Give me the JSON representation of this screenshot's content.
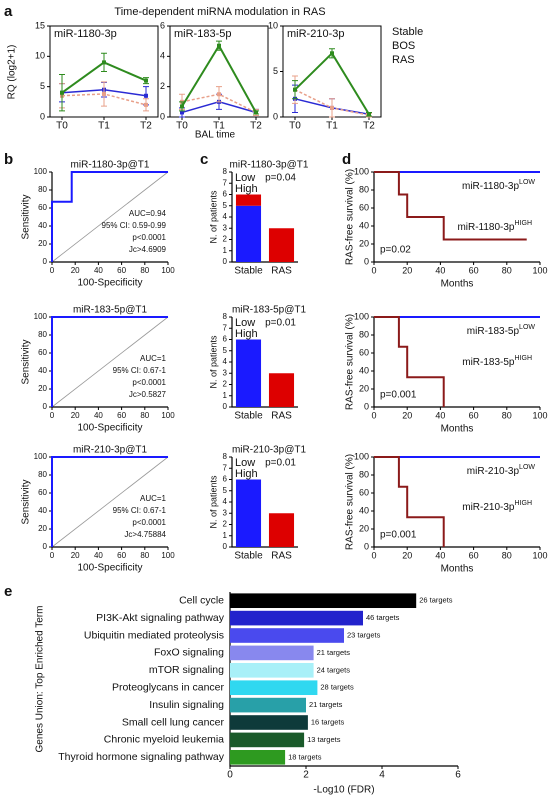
{
  "panel_a": {
    "letter": "a",
    "title": "Time-dependent miRNA modulation in RAS",
    "ylabel": "RQ (log2+1)",
    "xlabel": "BAL time"
  },
  "panel_b": {
    "letter": "b"
  },
  "panel_c": {
    "letter": "c"
  },
  "panel_d": {
    "letter": "d"
  },
  "panel_e": {
    "letter": "e"
  },
  "chart_data": [
    {
      "type": "line",
      "title": "miR-1180-3p",
      "categories": [
        "T0",
        "T1",
        "T2"
      ],
      "ylim": [
        0,
        15
      ],
      "yticks": [
        0,
        5,
        10,
        15
      ],
      "series": [
        {
          "name": "Stable",
          "color": "#2a2ad4",
          "values": [
            4,
            4.5,
            3.5
          ],
          "errors": [
            1.5,
            1.2,
            1.5
          ]
        },
        {
          "name": "BOS",
          "color": "#e8a08a",
          "values": [
            3.5,
            3.8,
            2
          ],
          "errors": [
            2,
            2,
            1
          ]
        },
        {
          "name": "RAS",
          "color": "#2e8b1e",
          "values": [
            4,
            9,
            6
          ],
          "errors": [
            3,
            1.5,
            0.5
          ]
        }
      ]
    },
    {
      "type": "line",
      "title": "miR-183-5p",
      "categories": [
        "T0",
        "T1",
        "T2"
      ],
      "ylim": [
        0,
        6
      ],
      "yticks": [
        0,
        2,
        4,
        6
      ],
      "series": [
        {
          "color": "#2a2ad4",
          "values": [
            0.3,
            1,
            0.3
          ],
          "errors": [
            0.3,
            0.5,
            0.2
          ]
        },
        {
          "color": "#e8a08a",
          "values": [
            1,
            1.5,
            0.3
          ],
          "errors": [
            0.5,
            0.5,
            0.2
          ]
        },
        {
          "color": "#2e8b1e",
          "values": [
            0.7,
            4.7,
            0.3
          ],
          "errors": [
            0.3,
            0.3,
            0.1
          ]
        }
      ]
    },
    {
      "type": "line",
      "title": "miR-210-3p",
      "categories": [
        "T0",
        "T1",
        "T2"
      ],
      "ylim": [
        0,
        10
      ],
      "yticks": [
        0,
        5,
        10
      ],
      "series": [
        {
          "color": "#2a2ad4",
          "values": [
            2,
            1,
            0.3
          ],
          "errors": [
            1.5,
            1,
            0.2
          ]
        },
        {
          "color": "#e8a08a",
          "values": [
            3,
            1,
            0.2
          ],
          "errors": [
            1.5,
            1,
            0.2
          ]
        },
        {
          "color": "#2e8b1e",
          "values": [
            3,
            7,
            0.3
          ],
          "errors": [
            1,
            0.5,
            0.2
          ]
        }
      ]
    },
    {
      "type": "roc",
      "title": "miR-1180-3p@T1",
      "xlabel": "100-Specificity",
      "ylabel": "Sensitivity",
      "xlim": [
        0,
        100
      ],
      "ylim": [
        0,
        100
      ],
      "xticks": [
        0,
        20,
        40,
        60,
        80,
        100
      ],
      "yticks": [
        0,
        20,
        40,
        60,
        80,
        100
      ],
      "series": [
        {
          "color": "#1a1aff",
          "x": [
            0,
            0,
            17,
            17,
            100
          ],
          "values": [
            0,
            67,
            67,
            100,
            100
          ]
        }
      ],
      "annotations": [
        "AUC=0.94",
        "95% CI: 0.59-0.99",
        "p<0.0001",
        "Jc>4.6909"
      ]
    },
    {
      "type": "roc",
      "title": "miR-183-5p@T1",
      "xlabel": "100-Specificity",
      "ylabel": "Sensitivity",
      "xlim": [
        0,
        100
      ],
      "ylim": [
        0,
        100
      ],
      "xticks": [
        0,
        20,
        40,
        60,
        80,
        100
      ],
      "yticks": [
        0,
        20,
        40,
        60,
        80,
        100
      ],
      "series": [
        {
          "color": "#1a1aff",
          "x": [
            0,
            0,
            100
          ],
          "values": [
            0,
            100,
            100
          ]
        }
      ],
      "annotations": [
        "AUC=1",
        "95% CI: 0.67-1",
        "p<0.0001",
        "Jc>0.5827"
      ]
    },
    {
      "type": "roc",
      "title": "miR-210-3p@T1",
      "xlabel": "100-Specificity",
      "ylabel": "Sensitivity",
      "xlim": [
        0,
        100
      ],
      "ylim": [
        0,
        100
      ],
      "xticks": [
        0,
        20,
        40,
        60,
        80,
        100
      ],
      "yticks": [
        0,
        20,
        40,
        60,
        80,
        100
      ],
      "series": [
        {
          "color": "#1a1aff",
          "x": [
            0,
            0,
            100
          ],
          "values": [
            0,
            100,
            100
          ]
        }
      ],
      "annotations": [
        "AUC=1",
        "95% CI: 0.67-1",
        "p<0.0001",
        "Jc>4.75884"
      ]
    },
    {
      "type": "stacked",
      "title": "miR-1180-3p@T1",
      "ylabel": "N. of patients",
      "categories": [
        "Stable",
        "RAS"
      ],
      "ylim": [
        0,
        8
      ],
      "yticks": [
        0,
        1,
        2,
        3,
        4,
        5,
        6,
        7,
        8
      ],
      "pvalue": "p=0.04",
      "series": [
        {
          "name": "Low",
          "color": "#1a1aff",
          "values": [
            5,
            0
          ]
        },
        {
          "name": "High",
          "color": "#dd0000",
          "values": [
            1,
            3
          ]
        }
      ]
    },
    {
      "type": "stacked",
      "title": "miR-183-5p@T1",
      "ylabel": "N. of patients",
      "categories": [
        "Stable",
        "RAS"
      ],
      "ylim": [
        0,
        8
      ],
      "yticks": [
        0,
        1,
        2,
        3,
        4,
        5,
        6,
        7,
        8
      ],
      "pvalue": "p=0.01",
      "series": [
        {
          "name": "Low",
          "color": "#1a1aff",
          "values": [
            6,
            0
          ]
        },
        {
          "name": "High",
          "color": "#dd0000",
          "values": [
            0,
            3
          ]
        }
      ]
    },
    {
      "type": "stacked",
      "title": "miR-210-3p@T1",
      "ylabel": "N. of patients",
      "categories": [
        "Stable",
        "RAS"
      ],
      "ylim": [
        0,
        8
      ],
      "yticks": [
        0,
        1,
        2,
        3,
        4,
        5,
        6,
        7,
        8
      ],
      "pvalue": "p=0.01",
      "series": [
        {
          "name": "Low",
          "color": "#1a1aff",
          "values": [
            6,
            0
          ]
        },
        {
          "name": "High",
          "color": "#dd0000",
          "values": [
            0,
            3
          ]
        }
      ]
    },
    {
      "type": "km",
      "xlabel": "Months",
      "ylabel": "RAS-free survival (%)",
      "xlim": [
        0,
        100
      ],
      "ylim": [
        0,
        100
      ],
      "xticks": [
        0,
        20,
        40,
        60,
        80,
        100
      ],
      "yticks": [
        0,
        20,
        40,
        60,
        80,
        100
      ],
      "pvalue": "p=0.02",
      "series": [
        {
          "name": "miR-1180-3p",
          "name_sup": "LOW",
          "color": "#1a1aff",
          "x": [
            0,
            100
          ],
          "values": [
            100,
            100
          ]
        },
        {
          "name": "miR-1180-3p",
          "name_sup": "HIGH",
          "color": "#8b1a1a",
          "x": [
            0,
            15,
            15,
            20,
            20,
            42,
            42,
            92
          ],
          "values": [
            100,
            100,
            75,
            75,
            50,
            50,
            25,
            25
          ]
        }
      ]
    },
    {
      "type": "km",
      "xlabel": "Months",
      "ylabel": "RAS-free survival (%)",
      "xlim": [
        0,
        100
      ],
      "ylim": [
        0,
        100
      ],
      "xticks": [
        0,
        20,
        40,
        60,
        80,
        100
      ],
      "yticks": [
        0,
        20,
        40,
        60,
        80,
        100
      ],
      "pvalue": "p=0.001",
      "series": [
        {
          "name": "miR-183-5p",
          "name_sup": "LOW",
          "color": "#1a1aff",
          "x": [
            0,
            100
          ],
          "values": [
            100,
            100
          ]
        },
        {
          "name": "miR-183-5p",
          "name_sup": "HIGH",
          "color": "#8b1a1a",
          "x": [
            0,
            15,
            15,
            20,
            20,
            42,
            42
          ],
          "values": [
            100,
            100,
            67,
            67,
            33,
            33,
            0
          ]
        }
      ]
    },
    {
      "type": "km",
      "xlabel": "Months",
      "ylabel": "RAS-free survival (%)",
      "xlim": [
        0,
        100
      ],
      "ylim": [
        0,
        100
      ],
      "xticks": [
        0,
        20,
        40,
        60,
        80,
        100
      ],
      "yticks": [
        0,
        20,
        40,
        60,
        80,
        100
      ],
      "pvalue": "p=0.001",
      "series": [
        {
          "name": "miR-210-3p",
          "name_sup": "LOW",
          "color": "#1a1aff",
          "x": [
            0,
            100
          ],
          "values": [
            100,
            100
          ]
        },
        {
          "name": "miR-210-3p",
          "name_sup": "HIGH",
          "color": "#8b1a1a",
          "x": [
            0,
            15,
            15,
            20,
            20,
            42,
            42
          ],
          "values": [
            100,
            100,
            67,
            67,
            33,
            33,
            0
          ]
        }
      ]
    },
    {
      "type": "hbar",
      "xlabel": "-Log10 (FDR)",
      "ylabel": "Genes Union: Top Enriched Term",
      "xlim": [
        0,
        6
      ],
      "xticks": [
        0,
        2,
        4,
        6
      ],
      "categories": [
        "Cell cycle",
        "PI3K-Akt signaling pathway",
        "Ubiquitin mediated proteolysis",
        "FoxO signaling",
        "mTOR signaling",
        "Proteoglycans in cancer",
        "Insulin signaling",
        "Small cell lung cancer",
        "Chronic myeloid leukemia",
        "Thyroid hormone signaling pathway"
      ],
      "values": [
        4.9,
        3.5,
        3.0,
        2.2,
        2.2,
        2.3,
        2.0,
        2.05,
        1.95,
        1.45
      ],
      "colors": [
        "#000000",
        "#2222cc",
        "#4a4aee",
        "#8888ee",
        "#a8f0f8",
        "#30d8f0",
        "#28a0a8",
        "#0e3a3a",
        "#1a5a2a",
        "#2e9a20"
      ],
      "bar_labels": [
        "26 targets",
        "46 targets",
        "23 targets",
        "21 targets",
        "24 targets",
        "28 targets",
        "21 targets",
        "16 targets",
        "13 targets",
        "18 targets"
      ]
    }
  ]
}
